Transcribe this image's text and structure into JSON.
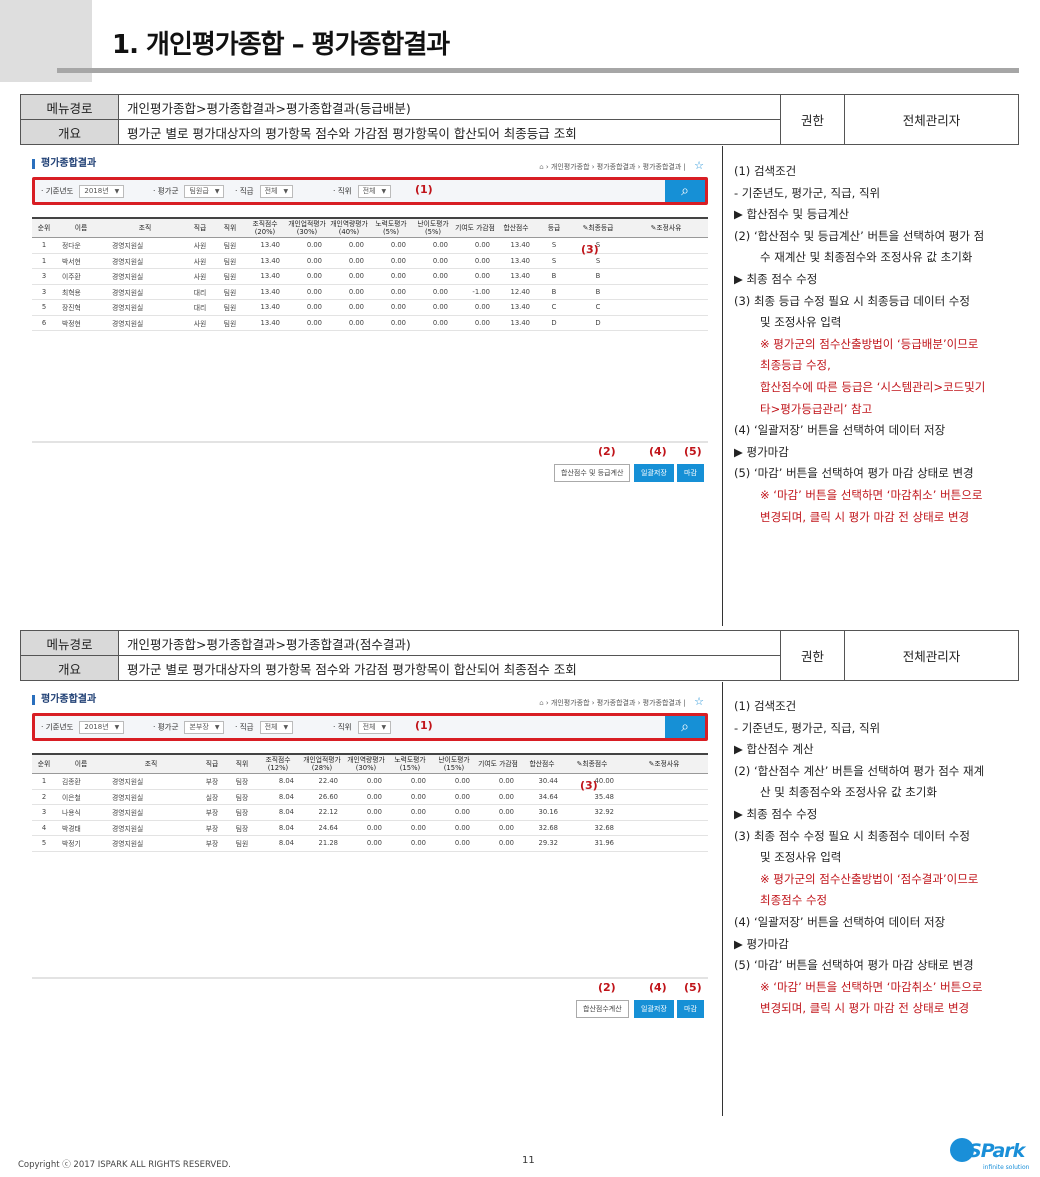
{
  "page_title": "1. 개인평가종합 – 평가종합결과",
  "sections": [
    {
      "menu_label": "메뉴경로",
      "menu_path": "개인평가종합>평가종합결과>평가종합결과(등급배분)",
      "overview_label": "개요",
      "overview": "평가군 별로 평가대상자의 평가항목 점수와 가감점 평가항목이 합산되어 최종등급 조회",
      "auth_label": "권한",
      "auth_value": "전체관리자",
      "mock": {
        "title": "평가종합결과",
        "breadcrumb": [
          "개인평가종합",
          "평가종합결과",
          "평가종합결과"
        ],
        "filters": [
          {
            "label": "기준년도",
            "value": "2018년"
          },
          {
            "label": "평가군",
            "value": "팀원급"
          },
          {
            "label": "직급",
            "value": "전체"
          },
          {
            "label": "직위",
            "value": "전체"
          }
        ],
        "mark_1": "(1)",
        "mark_3": "(3)",
        "mark_2": "(2)",
        "mark_4": "(4)",
        "mark_5": "(5)",
        "columns": [
          "순위",
          "이름",
          "조직",
          "직급",
          "직위",
          "조직점수 (20%)",
          "개인업적평가 (30%)",
          "개인역량평가 (40%)",
          "노력도평가 (5%)",
          "난이도평가 (5%)",
          "기여도 가감점",
          "합산점수",
          "등급",
          "최종등급",
          "조정사유"
        ],
        "rows": [
          [
            "1",
            "정다운",
            "경영지원실",
            "사원",
            "팀원",
            "13.40",
            "0.00",
            "0.00",
            "0.00",
            "0.00",
            "0.00",
            "13.40",
            "S",
            "S",
            ""
          ],
          [
            "1",
            "박서현",
            "경영지원실",
            "사원",
            "팀원",
            "13.40",
            "0.00",
            "0.00",
            "0.00",
            "0.00",
            "0.00",
            "13.40",
            "S",
            "S",
            ""
          ],
          [
            "3",
            "이주환",
            "경영지원실",
            "사원",
            "팀원",
            "13.40",
            "0.00",
            "0.00",
            "0.00",
            "0.00",
            "0.00",
            "13.40",
            "B",
            "B",
            ""
          ],
          [
            "3",
            "최혁용",
            "경영지원실",
            "대리",
            "팀원",
            "13.40",
            "0.00",
            "0.00",
            "0.00",
            "0.00",
            "-1.00",
            "12.40",
            "B",
            "B",
            ""
          ],
          [
            "5",
            "장진혁",
            "경영지원실",
            "대리",
            "팀원",
            "13.40",
            "0.00",
            "0.00",
            "0.00",
            "0.00",
            "0.00",
            "13.40",
            "C",
            "C",
            ""
          ],
          [
            "6",
            "박정현",
            "경영지원실",
            "사원",
            "팀원",
            "13.40",
            "0.00",
            "0.00",
            "0.00",
            "0.00",
            "0.00",
            "13.40",
            "D",
            "D",
            ""
          ]
        ],
        "btn_calc": "합산점수 및 등급계산",
        "btn_save": "일괄저장",
        "btn_close": "마감"
      },
      "notes": [
        {
          "text": "(1)  검색조건",
          "style": ""
        },
        {
          "text": "- 기준년도, 평가군, 직급, 직위",
          "style": ""
        },
        {
          "text": "▶ 합산점수 및 등급계산",
          "style": ""
        },
        {
          "text": "(2)  ‘합산점수 및 등급계산’ 버튼을 선택하여 평가 점",
          "style": ""
        },
        {
          "text": "수 재계산 및 최종점수와 조정사유 값 초기화",
          "style": "ind"
        },
        {
          "text": "▶ 최종 점수 수정",
          "style": ""
        },
        {
          "text": "(3)  최종 등급 수정 필요 시 최종등급 데이터 수정",
          "style": ""
        },
        {
          "text": "및 조정사유 입력",
          "style": "ind"
        },
        {
          "text": "※ 평가군의 점수산출방법이 ‘등급배분’이므로",
          "style": "ind red"
        },
        {
          "text": "최종등급 수정,",
          "style": "ind red"
        },
        {
          "text": "합산점수에 따른 등급은 ‘시스템관리>코드및기",
          "style": "ind red"
        },
        {
          "text": "타>평가등급관리’ 참고",
          "style": "ind red"
        },
        {
          "text": "(4)  ‘일괄저장’ 버튼을 선택하여 데이터 저장",
          "style": ""
        },
        {
          "text": "▶ 평가마감",
          "style": ""
        },
        {
          "text": "(5)  ‘마감’ 버튼을 선택하여 평가 마감 상태로 변경",
          "style": ""
        },
        {
          "text": "※ ‘마감’ 버튼을 선택하면 ‘마감취소’ 버튼으로",
          "style": "ind red"
        },
        {
          "text": "변경되며, 클릭 시 평가 마감 전 상태로 변경",
          "style": "ind red"
        }
      ]
    },
    {
      "menu_label": "메뉴경로",
      "menu_path": "개인평가종합>평가종합결과>평가종합결과(점수결과)",
      "overview_label": "개요",
      "overview": "평가군 별로 평가대상자의 평가항목 점수와 가감점 평가항목이 합산되어 최종점수 조회",
      "auth_label": "권한",
      "auth_value": "전체관리자",
      "mock": {
        "title": "평가종합결과",
        "breadcrumb": [
          "개인평가종합",
          "평가종합결과",
          "평가종합결과"
        ],
        "filters": [
          {
            "label": "기준년도",
            "value": "2018년"
          },
          {
            "label": "평가군",
            "value": "본부장"
          },
          {
            "label": "직급",
            "value": "전체"
          },
          {
            "label": "직위",
            "value": "전체"
          }
        ],
        "mark_1": "(1)",
        "mark_3": "(3)",
        "mark_2": "(2)",
        "mark_4": "(4)",
        "mark_5": "(5)",
        "columns": [
          "순위",
          "이름",
          "조직",
          "직급",
          "직위",
          "조직점수 (12%)",
          "개인업적평가 (28%)",
          "개인역량평가 (30%)",
          "노력도평가 (15%)",
          "난이도평가 (15%)",
          "기여도 가감점",
          "합산점수",
          "최종점수",
          "조정사유"
        ],
        "rows": [
          [
            "1",
            "김종환",
            "경영지원실",
            "부장",
            "팀장",
            "8.04",
            "22.40",
            "0.00",
            "0.00",
            "0.00",
            "0.00",
            "30.44",
            "40.00",
            ""
          ],
          [
            "2",
            "이은철",
            "경영지원실",
            "실장",
            "팀장",
            "8.04",
            "26.60",
            "0.00",
            "0.00",
            "0.00",
            "0.00",
            "34.64",
            "35.48",
            ""
          ],
          [
            "3",
            "나용식",
            "경영지원실",
            "부장",
            "팀장",
            "8.04",
            "22.12",
            "0.00",
            "0.00",
            "0.00",
            "0.00",
            "30.16",
            "32.92",
            ""
          ],
          [
            "4",
            "박경태",
            "경영지원실",
            "부장",
            "팀장",
            "8.04",
            "24.64",
            "0.00",
            "0.00",
            "0.00",
            "0.00",
            "32.68",
            "32.68",
            ""
          ],
          [
            "5",
            "박정기",
            "경영지원실",
            "부장",
            "팀원",
            "8.04",
            "21.28",
            "0.00",
            "0.00",
            "0.00",
            "0.00",
            "29.32",
            "31.96",
            ""
          ]
        ],
        "btn_calc": "합산점수계산",
        "btn_save": "일괄저장",
        "btn_close": "마감"
      },
      "notes": [
        {
          "text": "(1)  검색조건",
          "style": ""
        },
        {
          "text": "- 기준년도, 평가군, 직급, 직위",
          "style": ""
        },
        {
          "text": "▶ 합산점수 계산",
          "style": ""
        },
        {
          "text": "(2)  ‘합산점수 계산’ 버튼을 선택하여 평가 점수 재계",
          "style": ""
        },
        {
          "text": "산 및 최종점수와 조정사유 값 초기화",
          "style": "ind"
        },
        {
          "text": "▶ 최종 점수 수정",
          "style": ""
        },
        {
          "text": "(3)  최종 점수 수정 필요 시 최종점수 데이터 수정",
          "style": ""
        },
        {
          "text": "및 조정사유 입력",
          "style": "ind"
        },
        {
          "text": "※ 평가군의 점수산출방법이 ‘점수결과’이므로",
          "style": "ind red"
        },
        {
          "text": "최종점수 수정",
          "style": "ind red"
        },
        {
          "text": "(4)  ‘일괄저장’ 버튼을 선택하여 데이터 저장",
          "style": ""
        },
        {
          "text": "▶ 평가마감",
          "style": ""
        },
        {
          "text": "(5)  ‘마감’ 버튼을 선택하여 평가 마감 상태로 변경",
          "style": ""
        },
        {
          "text": "※ ‘마감’ 버튼을 선택하면 ‘마감취소’ 버튼으로",
          "style": "ind red"
        },
        {
          "text": "변경되며, 클릭 시 평가 마감 전 상태로 변경",
          "style": "ind red"
        }
      ]
    }
  ],
  "footer": {
    "copyright": "Copyright ⓒ 2017 ISPARK ALL RIGHTS RESERVED.",
    "page_number": "11",
    "logo_text": "ISPark",
    "logo_sub": "infinite solution"
  }
}
